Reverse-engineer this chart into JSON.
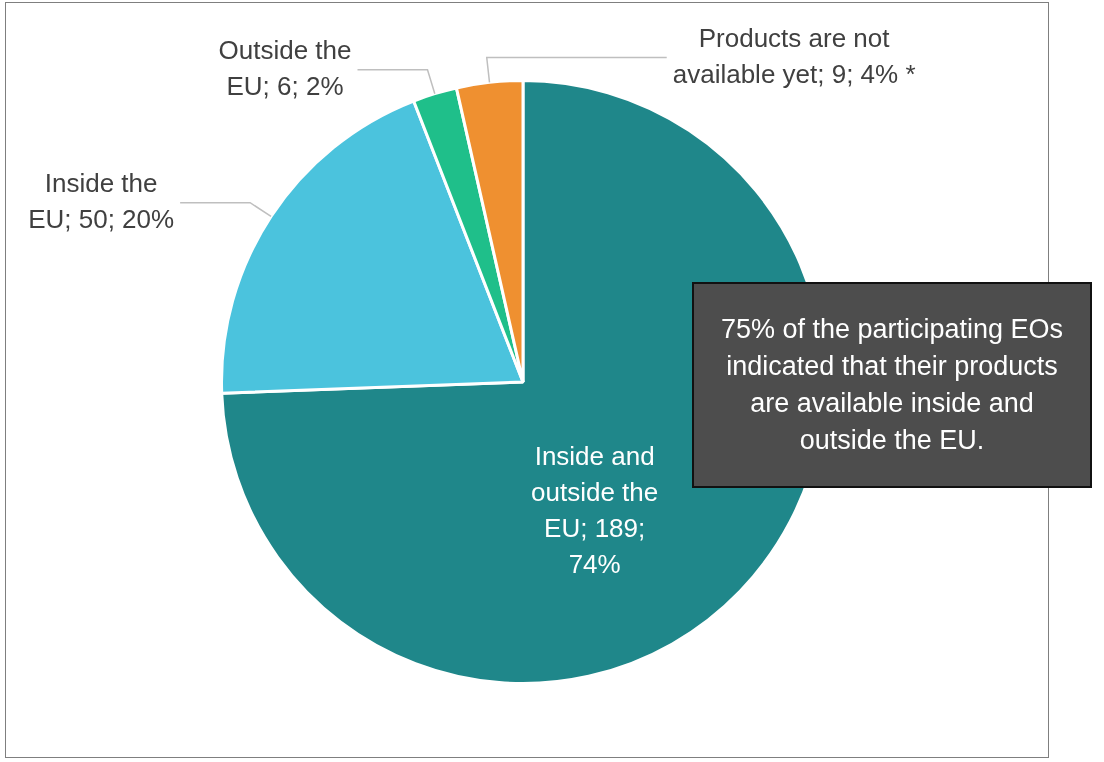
{
  "chart_data": {
    "type": "pie",
    "categories": [
      "Inside and outside the EU",
      "Inside the EU",
      "Outside the EU",
      "Products are not available yet"
    ],
    "values": [
      189,
      50,
      6,
      9
    ],
    "colors": [
      "#1f878a",
      "#4bc3dd",
      "#1fbf8a",
      "#ef9030"
    ],
    "value_labels": [
      "189; 74%",
      "50; 20%",
      "6; 2%",
      "9; 4% *"
    ],
    "annotations": [
      "75% of the participating EOs indicated that their products are available inside and outside the EU."
    ],
    "legend": false
  }
}
